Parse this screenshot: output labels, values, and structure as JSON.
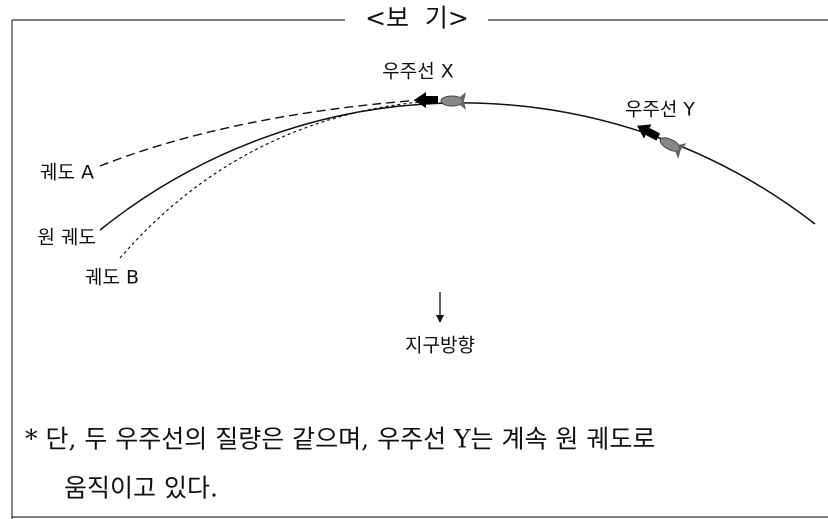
{
  "header": {
    "title": "<보  기>"
  },
  "labels": {
    "spaceship_x": "우주선 X",
    "spaceship_y": "우주선 Y",
    "orbit_a": "궤도 A",
    "circular_orbit": "원 궤도",
    "orbit_b": "궤도 B",
    "earth_direction": "지구방향"
  },
  "note": {
    "lines": [
      "* 단, 두 우주선의 질량은 같으며, 우주선 Y는 계속 원 궤도로",
      "움직이고 있다."
    ]
  }
}
